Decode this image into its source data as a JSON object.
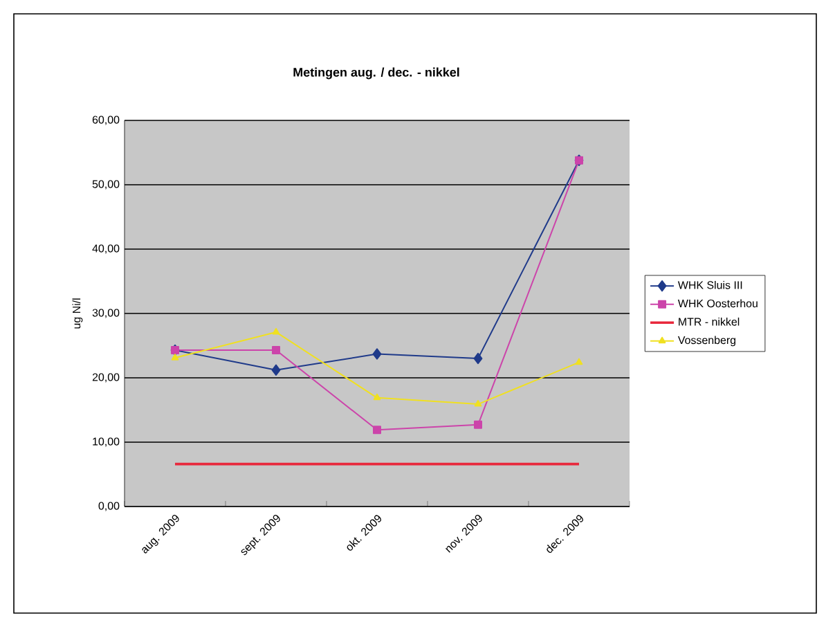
{
  "chart_data": {
    "type": "line",
    "title": "Metingen aug. / dec. - nikkel",
    "ylabel": "ug Ni/l",
    "categories": [
      "aug. 2009",
      "sept. 2009",
      "okt. 2009",
      "nov. 2009",
      "dec. 2009"
    ],
    "series": [
      {
        "name": "WHK Sluis III",
        "color": "#1f3a8a",
        "marker": "diamond",
        "values": [
          24.3,
          21.2,
          23.7,
          23.0,
          53.8
        ]
      },
      {
        "name": "WHK Oosterhou",
        "color": "#cc44aa",
        "marker": "square",
        "values": [
          24.3,
          24.3,
          11.9,
          12.7,
          53.8
        ]
      },
      {
        "name": "MTR - nikkel",
        "color": "#e8283c",
        "marker": "none",
        "values": [
          6.6,
          6.6,
          6.6,
          6.6,
          6.6
        ]
      },
      {
        "name": "Vossenberg",
        "color": "#f0e020",
        "marker": "triangle",
        "values": [
          23.1,
          27.1,
          16.9,
          15.9,
          22.4
        ]
      }
    ],
    "ylim": [
      0,
      60
    ],
    "yticks": [
      {
        "value": 0,
        "label": "0,00"
      },
      {
        "value": 10,
        "label": "10,00"
      },
      {
        "value": 20,
        "label": "20,00"
      },
      {
        "value": 30,
        "label": "30,00"
      },
      {
        "value": 40,
        "label": "40,00"
      },
      {
        "value": 50,
        "label": "50,00"
      },
      {
        "value": 60,
        "label": "60,00"
      }
    ],
    "grid": "y",
    "legend": "right"
  }
}
